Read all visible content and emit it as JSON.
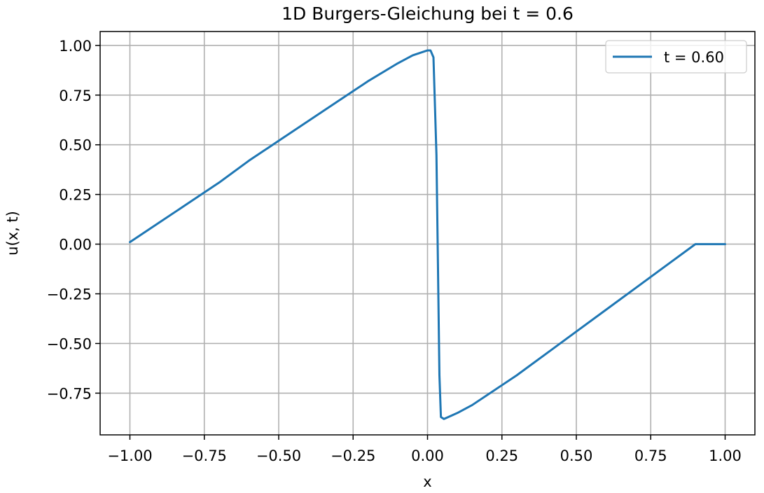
{
  "chart_data": {
    "type": "line",
    "title": "1D Burgers-Gleichung bei t = 0.6",
    "xlabel": "x",
    "ylabel": "u(x, t)",
    "xlim": [
      -1.1,
      1.1
    ],
    "ylim": [
      -0.96,
      1.07
    ],
    "xticks": [
      -1.0,
      -0.75,
      -0.5,
      -0.25,
      0.0,
      0.25,
      0.5,
      0.75,
      1.0
    ],
    "xtick_labels": [
      "−1.00",
      "−0.75",
      "−0.50",
      "−0.25",
      "0.00",
      "0.25",
      "0.50",
      "0.75",
      "1.00"
    ],
    "yticks": [
      1.0,
      0.75,
      0.5,
      0.25,
      0.0,
      -0.25,
      -0.5,
      -0.75
    ],
    "ytick_labels": [
      "1.00",
      "0.75",
      "0.50",
      "0.25",
      "0.00",
      "−0.25",
      "−0.50",
      "−0.75"
    ],
    "grid": true,
    "legend_position": "top-right",
    "series": [
      {
        "name": "t = 0.60",
        "color": "#1f77b4",
        "x": [
          -1.0,
          -0.9,
          -0.8,
          -0.7,
          -0.6,
          -0.5,
          -0.4,
          -0.3,
          -0.2,
          -0.1,
          -0.05,
          0.0,
          0.01,
          0.02,
          0.03,
          0.035,
          0.04,
          0.045,
          0.055,
          0.07,
          0.1,
          0.15,
          0.2,
          0.25,
          0.3,
          0.4,
          0.5,
          0.6,
          0.7,
          0.8,
          0.9,
          1.0
        ],
        "y": [
          0.01,
          0.11,
          0.21,
          0.31,
          0.42,
          0.52,
          0.62,
          0.72,
          0.82,
          0.91,
          0.95,
          0.975,
          0.975,
          0.94,
          0.45,
          -0.1,
          -0.66,
          -0.87,
          -0.88,
          -0.87,
          -0.85,
          -0.81,
          -0.76,
          -0.71,
          -0.66,
          -0.55,
          -0.44,
          -0.33,
          -0.22,
          -0.11,
          0.0,
          0.0
        ]
      }
    ]
  }
}
